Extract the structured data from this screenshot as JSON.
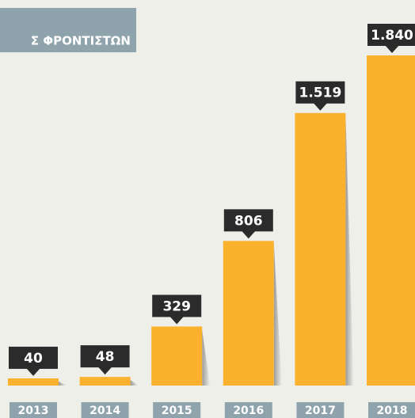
{
  "chart_data": {
    "type": "bar",
    "title": "Σ ΦΡΟΝΤΙΣΤΩΝ",
    "categories": [
      "2013",
      "2014",
      "2015",
      "2016",
      "2017",
      "2018"
    ],
    "values": [
      40,
      48,
      329,
      806,
      1519,
      1840
    ],
    "value_labels": [
      "40",
      "48",
      "329",
      "806",
      "1.519",
      "1.840"
    ],
    "color": "#fbb12e"
  }
}
